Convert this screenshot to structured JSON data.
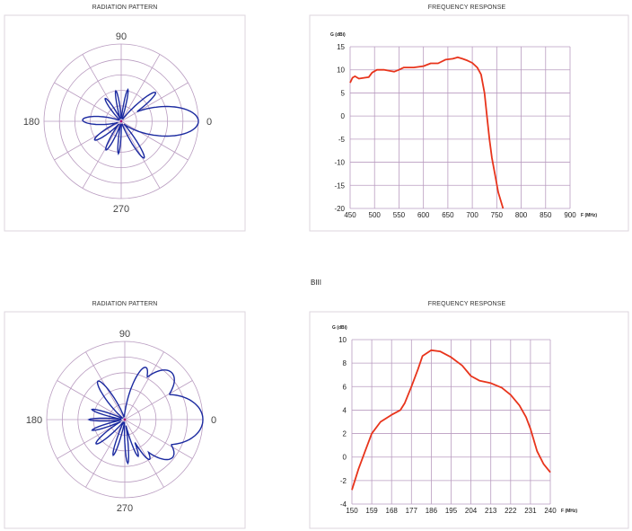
{
  "section_label": "BIII",
  "colors": {
    "pattern": "#1b2aa0",
    "response": "#e8341c",
    "grid": "#b99cc0"
  },
  "chart_data": [
    {
      "type": "polar",
      "title": "RADIATION PATTERN",
      "angle_labels": [
        "0",
        "90",
        "180",
        "270"
      ],
      "rings": 5,
      "spoke_step_deg": 30,
      "lobes": [
        {
          "angle": 0,
          "gain": 1.0,
          "width": 26
        },
        {
          "angle": 40,
          "gain": 0.58,
          "width": 9
        },
        {
          "angle": 78,
          "gain": 0.42,
          "width": 5
        },
        {
          "angle": 100,
          "gain": 0.4,
          "width": 6
        },
        {
          "angle": 125,
          "gain": 0.36,
          "width": 8
        },
        {
          "angle": 178,
          "gain": 0.5,
          "width": 14
        },
        {
          "angle": 215,
          "gain": 0.42,
          "width": 10
        },
        {
          "angle": 242,
          "gain": 0.42,
          "width": 8
        },
        {
          "angle": 265,
          "gain": 0.42,
          "width": 5
        },
        {
          "angle": 302,
          "gain": 0.56,
          "width": 8
        }
      ]
    },
    {
      "type": "line",
      "title": "FREQUENCY RESPONSE",
      "ylabel": "G (dBi)",
      "xlabel": "F (MHz)",
      "xlim": [
        450,
        900
      ],
      "ylim": [
        -20,
        15
      ],
      "xticks": [
        450,
        500,
        550,
        600,
        650,
        700,
        750,
        800,
        850,
        900
      ],
      "yticks": [
        15,
        10,
        5,
        0,
        -5,
        -10,
        -15,
        -20
      ],
      "x": [
        450,
        455,
        460,
        468,
        480,
        488,
        495,
        505,
        520,
        540,
        550,
        560,
        580,
        600,
        615,
        630,
        645,
        660,
        670,
        680,
        690,
        700,
        710,
        718,
        725,
        730,
        735,
        740,
        747,
        753,
        763
      ],
      "y": [
        7.2,
        8.3,
        8.6,
        8.1,
        8.3,
        8.4,
        9.4,
        10.0,
        10.0,
        9.6,
        10.0,
        10.5,
        10.5,
        10.8,
        11.4,
        11.4,
        12.2,
        12.4,
        12.7,
        12.4,
        12.0,
        11.5,
        10.5,
        9.0,
        5.0,
        0,
        -5,
        -9,
        -13,
        -16.5,
        -20
      ]
    },
    {
      "type": "polar",
      "title": "RADIATION PATTERN",
      "angle_labels": [
        "0",
        "90",
        "180",
        "270"
      ],
      "rings": 5,
      "spoke_step_deg": 30,
      "lobes": [
        {
          "angle": 0,
          "gain": 1.0,
          "width": 45
        },
        {
          "angle": 45,
          "gain": 0.85,
          "width": 30
        },
        {
          "angle": 68,
          "gain": 0.72,
          "width": 14
        },
        {
          "angle": -38,
          "gain": 0.78,
          "width": 25
        },
        {
          "angle": -58,
          "gain": 0.6,
          "width": 10
        },
        {
          "angle": 125,
          "gain": 0.6,
          "width": 11
        },
        {
          "angle": 163,
          "gain": 0.44,
          "width": 6
        },
        {
          "angle": 180,
          "gain": 0.46,
          "width": 5
        },
        {
          "angle": 198,
          "gain": 0.44,
          "width": 6
        },
        {
          "angle": 220,
          "gain": 0.48,
          "width": 9
        },
        {
          "angle": 252,
          "gain": 0.48,
          "width": 6
        },
        {
          "angle": 274,
          "gain": 0.56,
          "width": 5
        },
        {
          "angle": 290,
          "gain": 0.5,
          "width": 6
        }
      ]
    },
    {
      "type": "line",
      "title": "FREQUENCY RESPONSE",
      "ylabel": "G (dBi)",
      "xlabel": "F (MHz)",
      "xlim": [
        150,
        240
      ],
      "ylim": [
        -4,
        10
      ],
      "xticks": [
        150,
        159,
        168,
        177,
        186,
        195,
        204,
        213,
        222,
        231,
        240
      ],
      "yticks": [
        10,
        8,
        6,
        4,
        2,
        0,
        -2,
        -4
      ],
      "x": [
        150,
        153,
        156,
        159,
        163,
        168,
        172,
        174,
        177,
        180,
        182,
        186,
        190,
        195,
        200,
        204,
        208,
        213,
        218,
        222,
        226,
        229,
        231,
        234,
        237,
        240
      ],
      "y": [
        -2.8,
        -1.0,
        0.5,
        2.0,
        3.0,
        3.6,
        4.0,
        4.6,
        6.0,
        7.5,
        8.6,
        9.1,
        9.0,
        8.5,
        7.8,
        6.9,
        6.5,
        6.3,
        5.9,
        5.3,
        4.4,
        3.4,
        2.4,
        0.5,
        -0.6,
        -1.3
      ]
    }
  ]
}
